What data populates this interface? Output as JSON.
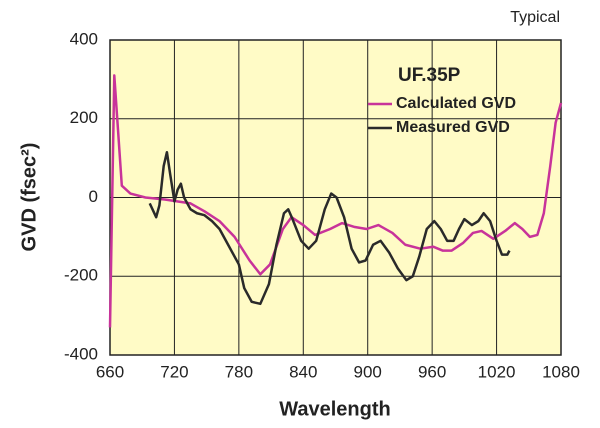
{
  "chart_data": {
    "type": "line",
    "title": "UF.35P",
    "annotation": "Typical",
    "xlabel": "Wavelength",
    "ylabel": "GVD (fsec²)",
    "xlim": [
      660,
      1080
    ],
    "xticks": [
      660,
      720,
      780,
      840,
      900,
      960,
      1020,
      1080
    ],
    "ylim": [
      -400,
      400
    ],
    "yticks": [
      400,
      200,
      0,
      -200,
      -400
    ],
    "grid": true,
    "background": "#fffbc6",
    "series": [
      {
        "name": "Calculated GVD",
        "color": "#c8339a",
        "x": [
          660,
          664,
          671,
          679,
          693,
          711,
          735,
          748,
          762,
          776,
          790,
          800,
          809,
          821,
          829,
          840,
          851,
          865,
          876,
          888,
          899,
          910,
          923,
          935,
          949,
          961,
          970,
          978,
          989,
          998,
          1006,
          1017,
          1028,
          1037,
          1044,
          1051,
          1058,
          1064,
          1070,
          1075,
          1080
        ],
        "values": [
          -330,
          310,
          30,
          10,
          0,
          -5,
          -15,
          -35,
          -60,
          -100,
          -160,
          -195,
          -170,
          -80,
          -50,
          -70,
          -95,
          -80,
          -65,
          -75,
          -80,
          -70,
          -90,
          -120,
          -130,
          -125,
          -135,
          -135,
          -115,
          -90,
          -85,
          -105,
          -85,
          -65,
          -80,
          -100,
          -95,
          -40,
          80,
          190,
          240
        ]
      },
      {
        "name": "Measured GVD",
        "color": "#2a2a2a",
        "x": [
          697,
          703,
          706,
          710,
          713,
          716,
          720,
          723,
          726,
          729,
          735,
          741,
          748,
          755,
          762,
          770,
          780,
          785,
          792,
          800,
          808,
          815,
          822,
          826,
          830,
          838,
          845,
          852,
          860,
          866,
          871,
          878,
          885,
          892,
          898,
          905,
          912,
          920,
          928,
          936,
          942,
          948,
          955,
          962,
          968,
          974,
          980,
          985,
          990,
          997,
          1003,
          1008,
          1014,
          1020,
          1025,
          1030,
          1032
        ],
        "values": [
          -15,
          -50,
          -20,
          80,
          115,
          60,
          -10,
          20,
          35,
          0,
          -30,
          -40,
          -45,
          -60,
          -80,
          -120,
          -170,
          -230,
          -265,
          -270,
          -220,
          -120,
          -40,
          -30,
          -55,
          -110,
          -130,
          -110,
          -30,
          10,
          0,
          -50,
          -130,
          -165,
          -160,
          -120,
          -110,
          -140,
          -180,
          -210,
          -200,
          -150,
          -80,
          -60,
          -80,
          -110,
          -110,
          -80,
          -55,
          -70,
          -60,
          -40,
          -60,
          -110,
          -145,
          -145,
          -135
        ]
      }
    ]
  }
}
